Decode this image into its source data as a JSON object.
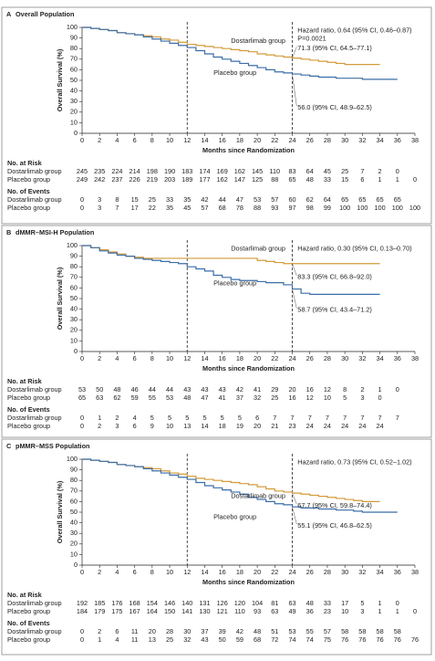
{
  "chart_data": [
    {
      "type": "step",
      "panel": "A",
      "title": "Overall Population",
      "x_label": "Months since Randomization",
      "y_label": "Overall Survival (%)",
      "xlim": [
        0,
        38
      ],
      "xticks": [
        0,
        2,
        4,
        6,
        8,
        10,
        12,
        14,
        16,
        18,
        20,
        22,
        24,
        26,
        28,
        30,
        32,
        34,
        36,
        38
      ],
      "ylim": [
        0,
        100
      ],
      "yticks": [
        0,
        10,
        20,
        30,
        40,
        50,
        60,
        70,
        80,
        90,
        100
      ],
      "vlines": [
        12,
        24
      ],
      "x": [
        0,
        1,
        2,
        3,
        4,
        5,
        6,
        7,
        8,
        9,
        10,
        11,
        12,
        13,
        14,
        15,
        16,
        17,
        18,
        19,
        20,
        21,
        22,
        23,
        24,
        25,
        26,
        27,
        28,
        29,
        30,
        31,
        32,
        33,
        34,
        35,
        36
      ],
      "series": [
        {
          "name": "Dostarlimab group",
          "color": "#d39b3a",
          "values": [
            100,
            99,
            98,
            97,
            95,
            94,
            93,
            92,
            91,
            89,
            88,
            86,
            84,
            83,
            82,
            81,
            80,
            79,
            78,
            77,
            75,
            74,
            73,
            72,
            71,
            70,
            69,
            68,
            67,
            66,
            65,
            65,
            65,
            65,
            65,
            null,
            null
          ]
        },
        {
          "name": "Placebo group",
          "color": "#3b6ea8",
          "values": [
            100,
            99,
            98,
            97,
            95,
            94,
            93,
            91,
            89,
            87,
            85,
            83,
            81,
            78,
            75,
            72,
            70,
            68,
            66,
            64,
            62,
            60,
            58,
            57,
            56,
            55,
            54,
            53,
            53,
            52,
            52,
            52,
            51,
            51,
            51,
            51,
            51
          ]
        }
      ],
      "hazard_ratio": "Hazard ratio, 0.64 (95% CI, 0.46–0.87)",
      "p_value": "P=0.0021",
      "dostarlimab_estimate": "71.3 (95% CI, 64.5–77.1)",
      "placebo_estimate": "56.0 (95% CI, 48.9–62.5)",
      "risk_table": {
        "title": "No. at Risk",
        "rows": [
          {
            "name": "Dostarlimab group",
            "values": [
              245,
              235,
              224,
              214,
              198,
              190,
              183,
              174,
              169,
              162,
              145,
              110,
              83,
              64,
              45,
              25,
              7,
              2,
              0
            ]
          },
          {
            "name": "Placebo group",
            "values": [
              249,
              242,
              237,
              226,
              219,
              203,
              189,
              177,
              162,
              147,
              125,
              88,
              65,
              48,
              33,
              15,
              6,
              1,
              1,
              0
            ]
          }
        ]
      },
      "events_table": {
        "title": "No. of Events",
        "rows": [
          {
            "name": "Dostarlimab group",
            "values": [
              0,
              3,
              8,
              15,
              25,
              33,
              35,
              42,
              44,
              47,
              53,
              57,
              60,
              62,
              64,
              65,
              65,
              65,
              65
            ]
          },
          {
            "name": "Placebo group",
            "values": [
              0,
              3,
              7,
              17,
              22,
              35,
              45,
              57,
              68,
              78,
              88,
              93,
              97,
              98,
              99,
              100,
              100,
              100,
              100,
              100
            ]
          }
        ]
      }
    },
    {
      "type": "step",
      "panel": "B",
      "title": "dMMR–MSI-H Population",
      "x_label": "Months since Randomization",
      "y_label": "Overall Survival (%)",
      "xlim": [
        0,
        38
      ],
      "xticks": [
        0,
        2,
        4,
        6,
        8,
        10,
        12,
        14,
        16,
        18,
        20,
        22,
        24,
        26,
        28,
        30,
        32,
        34,
        36,
        38
      ],
      "ylim": [
        0,
        100
      ],
      "yticks": [
        0,
        10,
        20,
        30,
        40,
        50,
        60,
        70,
        80,
        90,
        100
      ],
      "vlines": [
        12,
        24
      ],
      "x": [
        0,
        1,
        2,
        3,
        4,
        5,
        6,
        7,
        8,
        9,
        10,
        11,
        12,
        13,
        14,
        15,
        16,
        17,
        18,
        19,
        20,
        21,
        22,
        23,
        24,
        25,
        26,
        27,
        28,
        29,
        30,
        31,
        32,
        33,
        34,
        35,
        36
      ],
      "series": [
        {
          "name": "Dostarlimab group",
          "color": "#d39b3a",
          "values": [
            100,
            98,
            96,
            94,
            92,
            90,
            89,
            88,
            88,
            88,
            88,
            88,
            88,
            88,
            88,
            88,
            88,
            88,
            88,
            88,
            86,
            85,
            84,
            83,
            83,
            83,
            83,
            83,
            83,
            83,
            83,
            83,
            83,
            83,
            83,
            null,
            null
          ]
        },
        {
          "name": "Placebo group",
          "color": "#3b6ea8",
          "values": [
            100,
            98,
            95,
            93,
            91,
            90,
            88,
            87,
            86,
            85,
            84,
            83,
            80,
            78,
            76,
            72,
            70,
            68,
            67,
            67,
            66,
            65,
            65,
            63,
            59,
            55,
            54,
            54,
            54,
            54,
            54,
            54,
            54,
            54,
            54,
            null,
            null
          ]
        }
      ],
      "hazard_ratio": "Hazard ratio, 0.30 (95% CI, 0.13–0.70)",
      "dostarlimab_estimate": "83.3 (95% CI, 66.8–92.0)",
      "placebo_estimate": "58.7 (95% CI, 43.4–71.2)",
      "risk_table": {
        "title": "No. at Risk",
        "rows": [
          {
            "name": "Dostarlimab group",
            "values": [
              53,
              50,
              48,
              46,
              44,
              44,
              43,
              43,
              43,
              42,
              41,
              29,
              20,
              16,
              12,
              8,
              2,
              1,
              0
            ]
          },
          {
            "name": "Placebo group",
            "values": [
              65,
              63,
              62,
              59,
              55,
              53,
              48,
              47,
              41,
              37,
              32,
              25,
              16,
              12,
              10,
              5,
              3,
              0
            ]
          }
        ]
      },
      "events_table": {
        "title": "No. of Events",
        "rows": [
          {
            "name": "Dostarlimab group",
            "values": [
              0,
              1,
              2,
              4,
              5,
              5,
              5,
              5,
              5,
              5,
              6,
              7,
              7,
              7,
              7,
              7,
              7,
              7,
              7
            ]
          },
          {
            "name": "Placebo group",
            "values": [
              0,
              2,
              3,
              6,
              9,
              10,
              13,
              14,
              18,
              19,
              20,
              21,
              23,
              24,
              24,
              24,
              24,
              24
            ]
          }
        ]
      }
    },
    {
      "type": "step",
      "panel": "C",
      "title": "pMMR–MSS Population",
      "x_label": "Months since Randomization",
      "y_label": "Overall Survival (%)",
      "xlim": [
        0,
        38
      ],
      "xticks": [
        0,
        2,
        4,
        6,
        8,
        10,
        12,
        14,
        16,
        18,
        20,
        22,
        24,
        26,
        28,
        30,
        32,
        34,
        36,
        38
      ],
      "ylim": [
        0,
        100
      ],
      "yticks": [
        0,
        10,
        20,
        30,
        40,
        50,
        60,
        70,
        80,
        90,
        100
      ],
      "vlines": [
        12,
        24
      ],
      "x": [
        0,
        1,
        2,
        3,
        4,
        5,
        6,
        7,
        8,
        9,
        10,
        11,
        12,
        13,
        14,
        15,
        16,
        17,
        18,
        19,
        20,
        21,
        22,
        23,
        24,
        25,
        26,
        27,
        28,
        29,
        30,
        31,
        32,
        33,
        34,
        35,
        36
      ],
      "series": [
        {
          "name": "Dostarlimab group",
          "color": "#d39b3a",
          "values": [
            100,
            99,
            98,
            97,
            95,
            94,
            93,
            92,
            91,
            89,
            87,
            86,
            84,
            82,
            81,
            80,
            79,
            78,
            77,
            76,
            74,
            72,
            70,
            69,
            68,
            67,
            66,
            65,
            64,
            63,
            62,
            61,
            60,
            60,
            60,
            null,
            null
          ]
        },
        {
          "name": "Placebo group",
          "color": "#3b6ea8",
          "values": [
            100,
            99,
            98,
            97,
            95,
            94,
            93,
            91,
            89,
            87,
            85,
            83,
            81,
            78,
            75,
            73,
            71,
            69,
            67,
            64,
            62,
            60,
            58,
            57,
            55,
            54,
            54,
            53,
            53,
            52,
            52,
            51,
            50,
            50,
            50,
            50,
            50
          ]
        }
      ],
      "hazard_ratio": "Hazard ratio, 0.73 (95% CI, 0.52–1.02)",
      "dostarlimab_estimate": "67.7 (95% CI, 59.8–74.4)",
      "placebo_estimate": "55.1 (95% CI, 46.8–62.5)",
      "risk_table": {
        "title": "No. at Risk",
        "rows": [
          {
            "name": "Dostarlimab group",
            "values": [
              192,
              185,
              176,
              168,
              154,
              146,
              140,
              131,
              126,
              120,
              104,
              81,
              63,
              48,
              33,
              17,
              5,
              1,
              0
            ]
          },
          {
            "name": "Placebo group",
            "values": [
              184,
              179,
              175,
              167,
              164,
              150,
              141,
              130,
              121,
              110,
              93,
              63,
              49,
              36,
              23,
              10,
              3,
              1,
              1,
              0
            ]
          }
        ]
      },
      "events_table": {
        "title": "No. of Events",
        "rows": [
          {
            "name": "Dostarlimab group",
            "values": [
              0,
              2,
              6,
              11,
              20,
              28,
              30,
              37,
              39,
              42,
              48,
              51,
              53,
              55,
              57,
              58,
              58,
              58,
              58
            ]
          },
          {
            "name": "Placebo group",
            "values": [
              0,
              1,
              4,
              11,
              13,
              25,
              32,
              43,
              50,
              59,
              68,
              72,
              74,
              74,
              75,
              76,
              76,
              76,
              76,
              76
            ]
          }
        ]
      }
    }
  ]
}
